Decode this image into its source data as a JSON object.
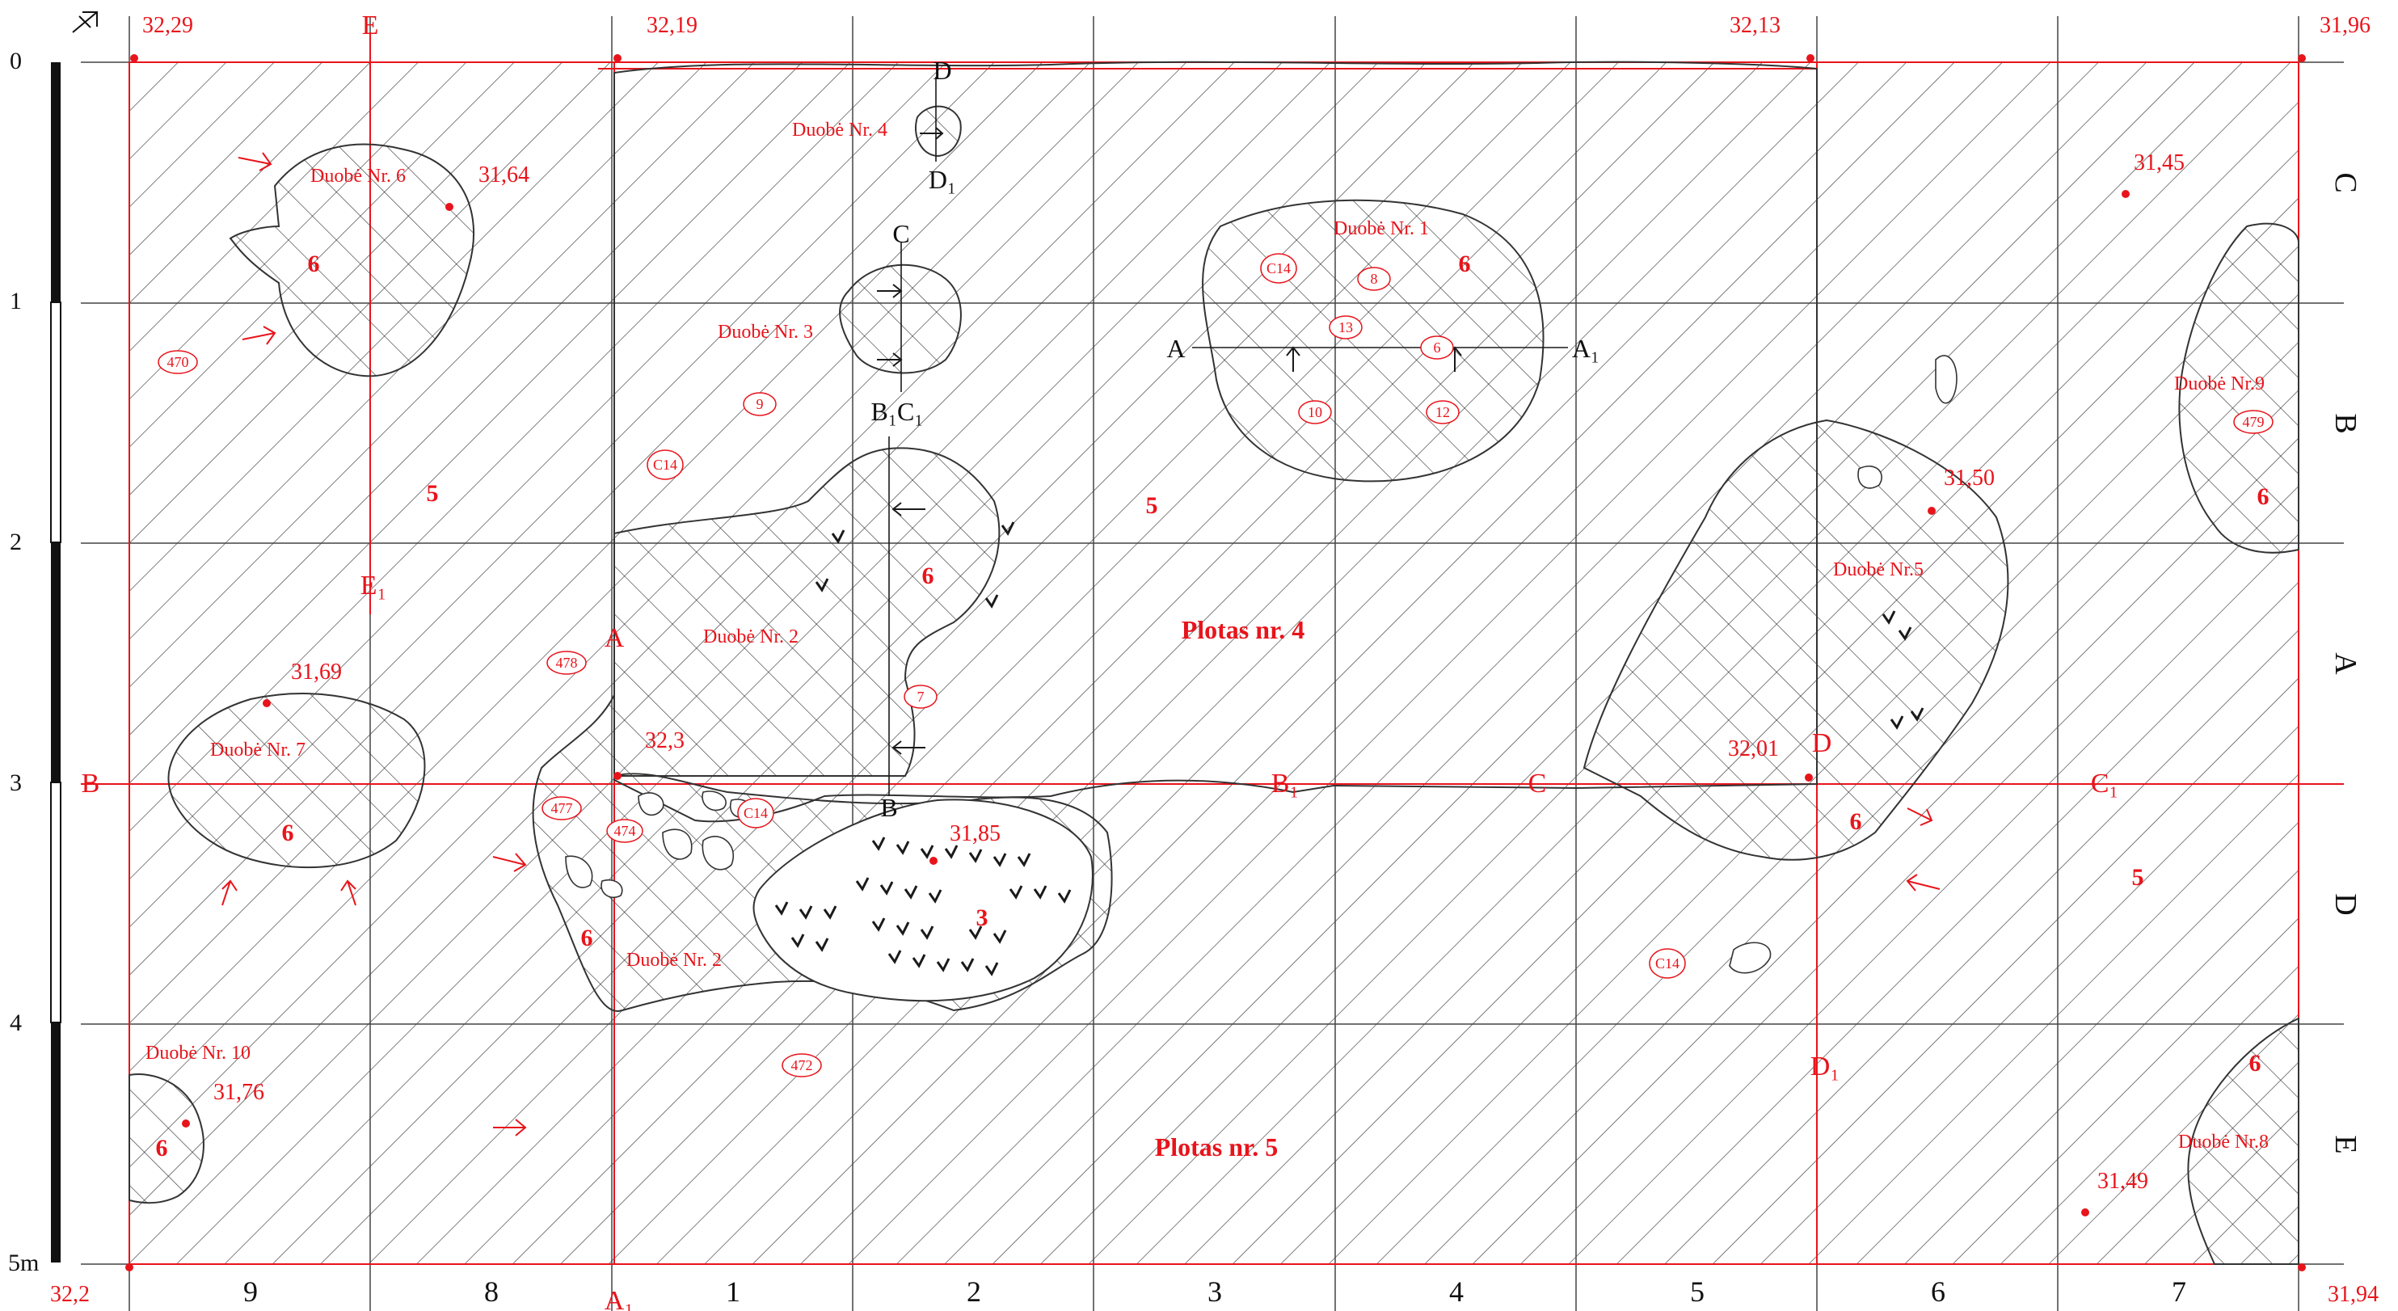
{
  "colors": {
    "red": "#e8141b",
    "black": "#1a1a1a",
    "hatch": "#3a3a3a"
  },
  "icons": {
    "north_arrow": "north-arrow-icon"
  },
  "scale_bar": {
    "labels": [
      "0",
      "1",
      "2",
      "3",
      "4",
      "5m"
    ]
  },
  "columns": [
    "9",
    "8",
    "1",
    "2",
    "3",
    "4",
    "5",
    "6",
    "7"
  ],
  "rows": [
    "C",
    "B",
    "A",
    "D",
    "E"
  ],
  "plots": {
    "plot4": "Plotas nr. 4",
    "plot5": "Plotas nr. 5"
  },
  "elevations": {
    "top_left": "32,29",
    "top_col1": "32,19",
    "top_col6": "32,13",
    "top_right": "31,96",
    "bottom_left": "32,2",
    "bottom_right": "31,94",
    "pit6": "31,64",
    "pit7": "31,69",
    "pit10": "31,76",
    "pit5": "31,50",
    "c_area": "31,45",
    "e_area": "31,49",
    "pit3_area": "31,85",
    "mid_a": "32,3",
    "mid_d": "32,01"
  },
  "pits": {
    "p1": "Duobė Nr. 1",
    "p2": "Duobė Nr. 2",
    "p3": "Duobė Nr. 3",
    "p4": "Duobė Nr. 4",
    "p5": "Duobė Nr.5",
    "p6": "Duobė Nr. 6",
    "p7": "Duobė Nr. 7",
    "p8": "Duobė Nr.8",
    "p9": "Duobė Nr.9",
    "p10": "Duobė Nr. 10"
  },
  "layers": {
    "l3": "3",
    "l5": "5",
    "l6": "6"
  },
  "tags": {
    "c14": "C14",
    "n470": "470",
    "n472": "472",
    "n474": "474",
    "n477": "477",
    "n478": "478",
    "n479": "479",
    "n6": "6",
    "n7": "7",
    "n8": "8",
    "n9": "9",
    "n10": "10",
    "n12": "12",
    "n13": "13"
  },
  "section_marks": {
    "A": "A",
    "A1": "A₁",
    "B": "B",
    "B1": "B₁",
    "C": "C",
    "C1": "C₁",
    "D": "D",
    "D1": "D₁",
    "E": "E",
    "E1": "E₁",
    "B1C1": "B₁C₁"
  }
}
